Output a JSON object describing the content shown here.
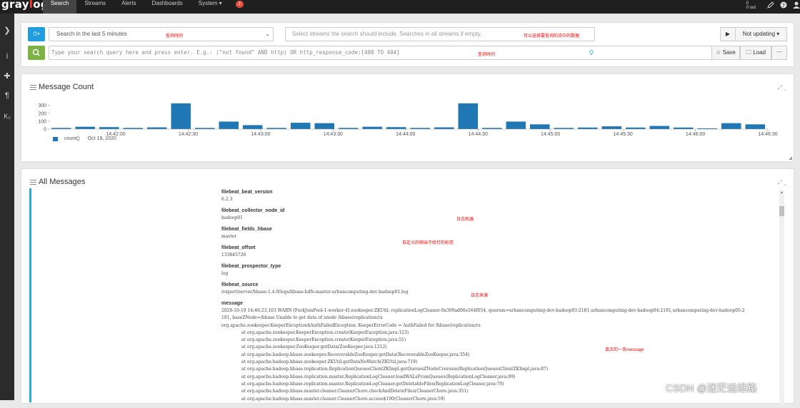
{
  "nav": {
    "logo_main": "gray",
    "logo_o": "l",
    "logo_rest": "og",
    "items": [
      "Search",
      "Streams",
      "Alerts",
      "Dashboards",
      "System ▾"
    ],
    "badge": "2",
    "throughput_line1": "0",
    "throughput_line2": "0 out"
  },
  "sidebar": {
    "icons": [
      "❯",
      "i",
      "✚",
      "¶",
      "K₂"
    ]
  },
  "search": {
    "time_range": "Search in the last 5 minutes",
    "time_anno": "查询时间",
    "streams_placeholder": "Select streams the search should include. Searches in all streams if empty.",
    "streams_anno": "可以选择要查询的流中的数据",
    "query_placeholder": "Type your search query here and press enter. E.g.: (\"not found\" AND http) OR http_response_code:[400 TO 404]",
    "query_anno": "查询时间",
    "play_label": "▶",
    "not_updating": "Not updating ▾",
    "save_label": "☆ Save",
    "load_label": "🗀 Load",
    "more_label": "⋯"
  },
  "message_count": {
    "title": "Message Count",
    "legend_label": "count()",
    "legend_date": "Oct 19, 2020"
  },
  "chart_data": {
    "type": "bar",
    "title": "Message Count",
    "y_ticks": [
      0,
      100,
      200,
      300
    ],
    "ylim": [
      0,
      360
    ],
    "x_ticks": [
      "14:42:00",
      "14:42:30",
      "14:43:00",
      "14:43:30",
      "14:44:00",
      "14:44:30",
      "14:45:00",
      "14:45:30",
      "14:46:00",
      "14:46:30"
    ],
    "series": [
      {
        "name": "count()",
        "values": [
          15,
          30,
          25,
          15,
          22,
          325,
          15,
          95,
          50,
          15,
          80,
          75,
          15,
          30,
          25,
          15,
          22,
          325,
          15,
          95,
          60,
          15,
          20,
          35,
          20,
          40,
          20,
          10,
          75,
          60
        ]
      }
    ],
    "legend": "bottom-left",
    "color": "#1f77b4"
  },
  "messages": {
    "title": "All Messages",
    "fields": [
      {
        "name": "filebeat_beat_version",
        "value": "6.2.3"
      },
      {
        "name": "filebeat_collector_node_id",
        "value": "hadoop01"
      },
      {
        "name": "filebeat_fields_hbase",
        "value": "master"
      },
      {
        "name": "filebeat_offset",
        "value": "133845726"
      },
      {
        "name": "filebeat_prospector_type",
        "value": "log"
      },
      {
        "name": "filebeat_source",
        "value": "/export/server/hbase-1.4.9/logs/hbase-hdfs-master-urbancomputing-dev-hadoop01.log"
      }
    ],
    "message_label": "message",
    "message_lines": [
      "2020-10-19 14:46:23,103 WARN  [ForkJoinPool-1-worker-4] zookeeper.ZKUtil: replicationLogCleaner-0x309ad06e564f054, quorum=urbancomputing-dev-hadoop03:2181,urbancomputing-dev-hadoop04:2181,urbancomputing-dev-hadoop05:2",
      "181, baseZNode=/hbase Unable to get data of znode /hbase/replication/rs",
      "org.apache.zookeeper.KeeperException$AuthFailedException: KeeperErrorCode = AuthFailed for /hbase/replication/rs"
    ],
    "stack_lines": [
      "at org.apache.zookeeper.KeeperException.create(KeeperException.java:123)",
      "at org.apache.zookeeper.KeeperException.create(KeeperException.java:51)",
      "at org.apache.zookeeper.ZooKeeper.getData(ZooKeeper.java:1212)",
      "at org.apache.hadoop.hbase.zookeeper.RecoverableZooKeeper.getData(RecoverableZooKeeper.java:354)",
      "at org.apache.hadoop.hbase.zookeeper.ZKUtil.getDataNoWatch(ZKUtil.java:719)",
      "at org.apache.hadoop.hbase.replication.ReplicationQueuesClientZKImpl.getQueuesZNodeCversion(ReplicationQueuesClientZKImpl.java:87)",
      "at org.apache.hadoop.hbase.replication.master.ReplicationLogCleaner.loadWALsFromQueues(ReplicationLogCleaner.java:99)",
      "at org.apache.hadoop.hbase.replication.master.ReplicationLogCleaner.getDeletableFiles(ReplicationLogCleaner.java:70)",
      "at org.apache.hadoop.hbase.master.cleaner.CleanerChore.checkAndDeleteFiles(CleanerChore.java:351)",
      "at org.apache.hadoop.hbase.master.cleaner.CleanerChore.access$100(CleanerChore.java:59)"
    ],
    "anno_node": "日志机器",
    "anno_fields": "自定义的相当于给打的标签",
    "anno_source": "日志来源",
    "anno_message": "真正的一条message"
  },
  "watermark": "CSDN @迷茫运维路"
}
